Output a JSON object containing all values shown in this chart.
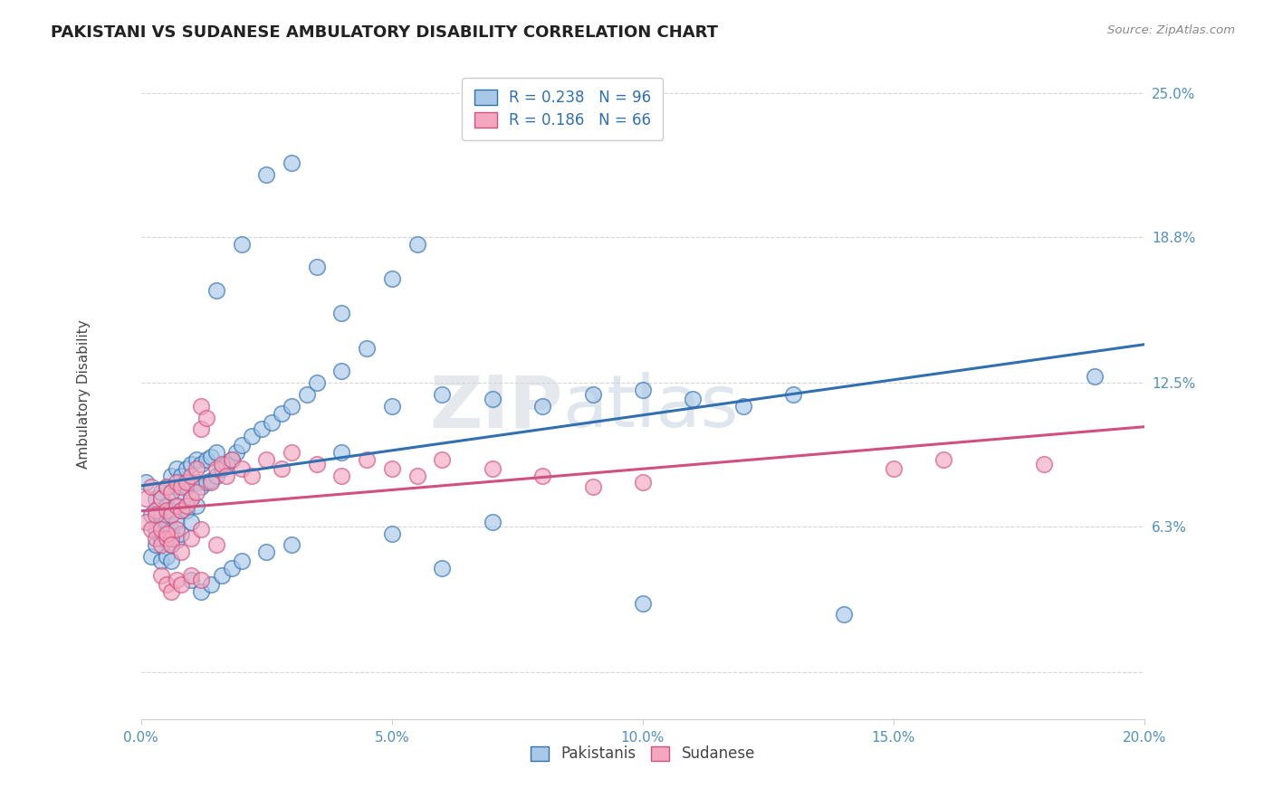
{
  "title": "PAKISTANI VS SUDANESE AMBULATORY DISABILITY CORRELATION CHART",
  "source": "Source: ZipAtlas.com",
  "ylabel": "Ambulatory Disability",
  "xlim": [
    0.0,
    0.2
  ],
  "ylim": [
    -0.02,
    0.26
  ],
  "xticks": [
    0.0,
    0.05,
    0.1,
    0.15,
    0.2
  ],
  "xtick_labels": [
    "0.0%",
    "5.0%",
    "10.0%",
    "15.0%",
    "20.0%"
  ],
  "yticks": [
    0.0,
    0.063,
    0.125,
    0.188,
    0.25
  ],
  "ytick_labels": [
    "",
    "6.3%",
    "12.5%",
    "18.8%",
    "25.0%"
  ],
  "pakistani_R": 0.238,
  "pakistani_N": 96,
  "sudanese_R": 0.186,
  "sudanese_N": 66,
  "blue_color": "#a8c8e8",
  "blue_line_color": "#3070b0",
  "pink_color": "#f4a8c0",
  "pink_line_color": "#d05080",
  "legend_R_color": "#3070b0",
  "background_color": "#ffffff",
  "grid_color": "#cccccc",
  "title_color": "#222222",
  "axis_label_color": "#444444",
  "tick_color": "#5090c0",
  "watermark": "ZIPatlas",
  "pakistani_x": [
    0.001,
    0.002,
    0.002,
    0.003,
    0.003,
    0.003,
    0.004,
    0.004,
    0.004,
    0.004,
    0.005,
    0.005,
    0.005,
    0.005,
    0.005,
    0.006,
    0.006,
    0.006,
    0.006,
    0.006,
    0.006,
    0.007,
    0.007,
    0.007,
    0.007,
    0.007,
    0.008,
    0.008,
    0.008,
    0.008,
    0.009,
    0.009,
    0.009,
    0.01,
    0.01,
    0.01,
    0.01,
    0.011,
    0.011,
    0.011,
    0.012,
    0.012,
    0.013,
    0.013,
    0.014,
    0.014,
    0.015,
    0.015,
    0.016,
    0.017,
    0.018,
    0.019,
    0.02,
    0.022,
    0.024,
    0.026,
    0.028,
    0.03,
    0.033,
    0.015,
    0.02,
    0.025,
    0.03,
    0.035,
    0.04,
    0.045,
    0.05,
    0.055,
    0.01,
    0.012,
    0.014,
    0.016,
    0.018,
    0.02,
    0.025,
    0.03,
    0.035,
    0.04,
    0.05,
    0.06,
    0.07,
    0.08,
    0.09,
    0.1,
    0.11,
    0.12,
    0.13,
    0.04,
    0.05,
    0.06,
    0.07,
    0.1,
    0.14,
    0.19
  ],
  "pakistani_y": [
    0.082,
    0.068,
    0.05,
    0.075,
    0.062,
    0.055,
    0.078,
    0.068,
    0.058,
    0.048,
    0.08,
    0.072,
    0.065,
    0.058,
    0.05,
    0.085,
    0.078,
    0.07,
    0.062,
    0.055,
    0.048,
    0.088,
    0.08,
    0.072,
    0.065,
    0.057,
    0.085,
    0.078,
    0.07,
    0.06,
    0.088,
    0.08,
    0.07,
    0.09,
    0.082,
    0.075,
    0.065,
    0.092,
    0.082,
    0.072,
    0.09,
    0.08,
    0.092,
    0.082,
    0.093,
    0.083,
    0.095,
    0.085,
    0.088,
    0.09,
    0.092,
    0.095,
    0.098,
    0.102,
    0.105,
    0.108,
    0.112,
    0.115,
    0.12,
    0.165,
    0.185,
    0.215,
    0.22,
    0.175,
    0.155,
    0.14,
    0.17,
    0.185,
    0.04,
    0.035,
    0.038,
    0.042,
    0.045,
    0.048,
    0.052,
    0.055,
    0.125,
    0.13,
    0.115,
    0.12,
    0.118,
    0.115,
    0.12,
    0.122,
    0.118,
    0.115,
    0.12,
    0.095,
    0.06,
    0.045,
    0.065,
    0.03,
    0.025,
    0.128
  ],
  "sudanese_x": [
    0.001,
    0.001,
    0.002,
    0.002,
    0.003,
    0.003,
    0.003,
    0.004,
    0.004,
    0.004,
    0.005,
    0.005,
    0.005,
    0.006,
    0.006,
    0.006,
    0.007,
    0.007,
    0.007,
    0.008,
    0.008,
    0.009,
    0.009,
    0.01,
    0.01,
    0.011,
    0.011,
    0.012,
    0.012,
    0.013,
    0.014,
    0.015,
    0.016,
    0.017,
    0.018,
    0.02,
    0.022,
    0.025,
    0.028,
    0.03,
    0.035,
    0.04,
    0.045,
    0.05,
    0.055,
    0.06,
    0.07,
    0.08,
    0.09,
    0.1,
    0.004,
    0.005,
    0.006,
    0.007,
    0.008,
    0.01,
    0.012,
    0.015,
    0.15,
    0.16,
    0.005,
    0.006,
    0.008,
    0.01,
    0.012,
    0.18
  ],
  "sudanese_y": [
    0.075,
    0.065,
    0.08,
    0.062,
    0.07,
    0.058,
    0.068,
    0.075,
    0.062,
    0.055,
    0.08,
    0.07,
    0.058,
    0.078,
    0.068,
    0.058,
    0.082,
    0.072,
    0.062,
    0.08,
    0.07,
    0.082,
    0.072,
    0.085,
    0.075,
    0.088,
    0.078,
    0.115,
    0.105,
    0.11,
    0.082,
    0.088,
    0.09,
    0.085,
    0.092,
    0.088,
    0.085,
    0.092,
    0.088,
    0.095,
    0.09,
    0.085,
    0.092,
    0.088,
    0.085,
    0.092,
    0.088,
    0.085,
    0.08,
    0.082,
    0.042,
    0.038,
    0.035,
    0.04,
    0.038,
    0.042,
    0.04,
    0.055,
    0.088,
    0.092,
    0.06,
    0.055,
    0.052,
    0.058,
    0.062,
    0.09
  ]
}
